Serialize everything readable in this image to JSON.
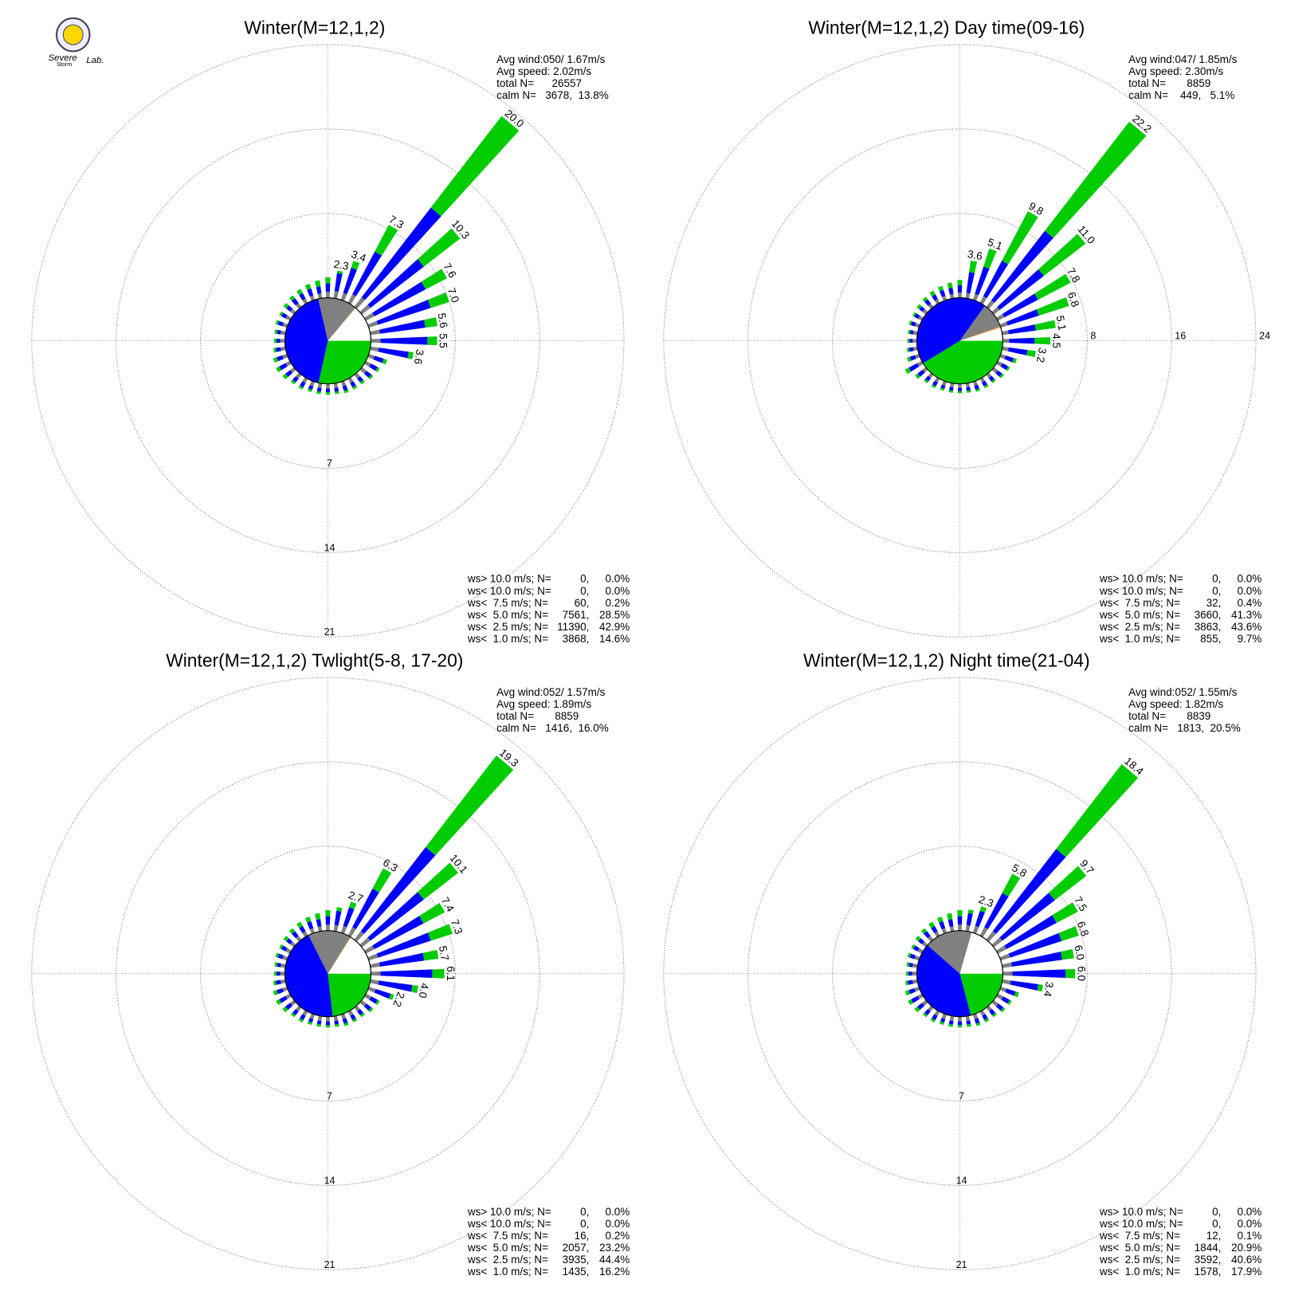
{
  "logo": [
    "Severe",
    "Storm",
    "Lab."
  ],
  "chart_data": [
    {
      "type": "windrose",
      "title": "Winter(M=12,1,2)",
      "info": [
        "Avg wind:050/ 1.67m/s",
        "Avg speed: 2.02m/s",
        "total N=      26557",
        "calm N=   3678,  13.8%"
      ],
      "directions": [
        10,
        20,
        30,
        40,
        50,
        60,
        70,
        80,
        90,
        100,
        110,
        120,
        130,
        140,
        150,
        160,
        170,
        180,
        190,
        200,
        210,
        220,
        230,
        240,
        250,
        260,
        270,
        280,
        290,
        300,
        310,
        320,
        330,
        340,
        350,
        360
      ],
      "rlim": [
        0,
        21
      ],
      "rticks": [
        7,
        14,
        21
      ],
      "grid": true,
      "bar_labels": [
        "2.3",
        "3.4",
        "7.3",
        "20.0",
        "10.3",
        "7.6",
        "7.0",
        "5.6",
        "5.5",
        "3.6",
        null,
        null,
        null,
        null,
        null,
        null,
        null,
        null,
        null,
        null,
        null,
        null,
        null,
        null,
        null,
        null,
        null,
        null,
        null,
        null,
        null,
        null,
        null,
        null,
        null,
        null
      ],
      "classes": [
        {
          "name": "ws> 10.0 m/s; N=",
          "color": "#9900cc",
          "n": "0,",
          "percent": 0,
          "percent_label": "0.0%"
        },
        {
          "name": "ws< 10.0 m/s; N=",
          "color": "#ff0000",
          "n": "0,",
          "percent": 0,
          "percent_label": "0.0%"
        },
        {
          "name": "ws<  7.5 m/s; N=",
          "color": "#ff9933",
          "n": "60,",
          "percent": 0.2,
          "percent_label": "0.2%"
        },
        {
          "name": "ws<  5.0 m/s; N=",
          "color": "#00cc00",
          "n": "7561,",
          "percent": 28.5,
          "percent_label": "28.5%",
          "values": [
            0.2,
            0.6,
            2.5,
            9.6,
            3.8,
            2.0,
            1.6,
            1.0,
            0.8,
            0.4,
            0.3,
            0.2,
            0.2,
            0.2,
            0.2,
            0.2,
            0.2,
            0.2,
            0.2,
            0.2,
            0.2,
            0.2,
            0.3,
            0.3,
            0.3,
            0.2,
            0.2,
            0.2,
            0.2,
            0.2,
            0.3,
            0.3,
            0.4,
            0.4,
            0.5,
            0.5
          ]
        },
        {
          "name": "ws<  2.5 m/s; N=",
          "color": "#0000ff",
          "n": "11390,",
          "percent": 42.9,
          "percent_label": "42.9%",
          "values": [
            1.5,
            2.2,
            4.0,
            9.4,
            5.6,
            4.8,
            4.6,
            3.8,
            3.9,
            2.5,
            0.8,
            0.6,
            0.5,
            0.4,
            0.4,
            0.4,
            0.3,
            0.3,
            0.3,
            0.3,
            0.4,
            0.4,
            0.5,
            0.6,
            0.5,
            0.4,
            0.3,
            0.3,
            0.4,
            0.4,
            0.4,
            0.5,
            0.5,
            0.6,
            0.6,
            0.7
          ]
        },
        {
          "name": "ws<  1.0 m/s; N=",
          "color": "#808080",
          "n": "3868,",
          "percent": 14.6,
          "percent_label": "14.6%",
          "values": [
            0.6,
            0.6,
            0.8,
            1.0,
            0.9,
            0.8,
            0.8,
            0.8,
            0.8,
            0.7,
            0.5,
            0.5,
            0.5,
            0.4,
            0.4,
            0.4,
            0.4,
            0.4,
            0.4,
            0.4,
            0.4,
            0.4,
            0.4,
            0.4,
            0.4,
            0.4,
            0.4,
            0.4,
            0.4,
            0.4,
            0.4,
            0.4,
            0.4,
            0.4,
            0.4,
            0.5
          ]
        }
      ]
    },
    {
      "type": "windrose",
      "title": "Winter(M=12,1,2) Day time(09-16)",
      "info": [
        "Avg wind:047/ 1.85m/s",
        "Avg speed: 2.30m/s",
        "total N=       8859",
        "calm N=    449,   5.1%"
      ],
      "directions": [
        10,
        20,
        30,
        40,
        50,
        60,
        70,
        80,
        90,
        100,
        110,
        120,
        130,
        140,
        150,
        160,
        170,
        180,
        190,
        200,
        210,
        220,
        230,
        240,
        250,
        260,
        270,
        280,
        290,
        300,
        310,
        320,
        330,
        340,
        350,
        360
      ],
      "rlim": [
        0,
        24
      ],
      "rticks": [
        8,
        16,
        24
      ],
      "grid": true,
      "bar_labels": [
        "3.6",
        "5.1",
        "9.8",
        "22.2",
        "11.0",
        "7.8",
        "6.8",
        "5.1",
        "4.5",
        "3.2",
        null,
        null,
        null,
        null,
        null,
        null,
        null,
        null,
        null,
        null,
        null,
        null,
        null,
        null,
        null,
        null,
        null,
        null,
        null,
        null,
        null,
        null,
        null,
        null,
        null,
        null
      ],
      "classes": [
        {
          "name": "ws> 10.0 m/s; N=",
          "color": "#9900cc",
          "n": "0,",
          "percent": 0,
          "percent_label": "0.0%"
        },
        {
          "name": "ws< 10.0 m/s; N=",
          "color": "#ff0000",
          "n": "0,",
          "percent": 0,
          "percent_label": "0.0%"
        },
        {
          "name": "ws<  7.5 m/s; N=",
          "color": "#ff9933",
          "n": "32,",
          "percent": 0.4,
          "percent_label": "0.4%"
        },
        {
          "name": "ws<  5.0 m/s; N=",
          "color": "#00cc00",
          "n": "3660,",
          "percent": 41.3,
          "percent_label": "41.3%",
          "values": [
            1.1,
            1.8,
            5.3,
            13.1,
            5.0,
            3.5,
            3.0,
            1.9,
            1.5,
            0.8,
            0.3,
            0.2,
            0.2,
            0.2,
            0.2,
            0.2,
            0.2,
            0.2,
            0.2,
            0.2,
            0.2,
            0.2,
            0.3,
            0.4,
            0.3,
            0.2,
            0.2,
            0.2,
            0.2,
            0.2,
            0.3,
            0.3,
            0.4,
            0.4,
            0.5,
            0.5
          ]
        },
        {
          "name": "ws<  2.5 m/s; N=",
          "color": "#0000ff",
          "n": "3863,",
          "percent": 43.6,
          "percent_label": "43.6%",
          "values": [
            2.0,
            2.7,
            3.8,
            8.3,
            5.3,
            3.6,
            3.1,
            2.6,
            2.4,
            1.8,
            0.8,
            0.6,
            0.5,
            0.4,
            0.4,
            0.4,
            0.3,
            0.3,
            0.3,
            0.3,
            0.4,
            0.4,
            0.6,
            0.9,
            0.5,
            0.4,
            0.3,
            0.3,
            0.4,
            0.4,
            0.4,
            0.5,
            0.5,
            0.6,
            0.6,
            0.7
          ]
        },
        {
          "name": "ws<  1.0 m/s; N=",
          "color": "#808080",
          "n": "855,",
          "percent": 9.7,
          "percent_label": "9.7%",
          "values": [
            0.5,
            0.6,
            0.7,
            0.8,
            0.7,
            0.7,
            0.7,
            0.6,
            0.6,
            0.6,
            0.5,
            0.5,
            0.5,
            0.4,
            0.4,
            0.4,
            0.4,
            0.4,
            0.4,
            0.4,
            0.4,
            0.4,
            0.4,
            0.5,
            0.4,
            0.4,
            0.4,
            0.4,
            0.4,
            0.4,
            0.4,
            0.4,
            0.4,
            0.4,
            0.4,
            0.5
          ]
        }
      ]
    },
    {
      "type": "windrose",
      "title": "Winter(M=12,1,2) Twlight(5-8, 17-20)",
      "info": [
        "Avg wind:052/ 1.57m/s",
        "Avg speed: 1.89m/s",
        "total N=       8859",
        "calm N=   1416,  16.0%"
      ],
      "directions": [
        10,
        20,
        30,
        40,
        50,
        60,
        70,
        80,
        90,
        100,
        110,
        120,
        130,
        140,
        150,
        160,
        170,
        180,
        190,
        200,
        210,
        220,
        230,
        240,
        250,
        260,
        270,
        280,
        290,
        300,
        310,
        320,
        330,
        340,
        350,
        360
      ],
      "rlim": [
        0,
        21
      ],
      "rticks": [
        7,
        14,
        21
      ],
      "grid": true,
      "bar_labels": [
        null,
        "2.7",
        "6.3",
        "19.3",
        "10.1",
        "7.4",
        "7.3",
        "5.7",
        "6.1",
        "4.0",
        "2.2",
        null,
        null,
        null,
        null,
        null,
        null,
        null,
        null,
        null,
        null,
        null,
        null,
        null,
        null,
        null,
        null,
        null,
        null,
        null,
        null,
        null,
        null,
        null,
        null,
        null
      ],
      "classes": [
        {
          "name": "ws> 10.0 m/s; N=",
          "color": "#9900cc",
          "n": "0,",
          "percent": 0,
          "percent_label": "0.0%"
        },
        {
          "name": "ws< 10.0 m/s; N=",
          "color": "#ff0000",
          "n": "0,",
          "percent": 0,
          "percent_label": "0.0%"
        },
        {
          "name": "ws<  7.5 m/s; N=",
          "color": "#ff9933",
          "n": "16,",
          "percent": 0.2,
          "percent_label": "0.2%"
        },
        {
          "name": "ws<  5.0 m/s; N=",
          "color": "#00cc00",
          "n": "2057,",
          "percent": 23.2,
          "percent_label": "23.2%",
          "values": [
            0.3,
            0.5,
            1.9,
            9.6,
            3.6,
            2.0,
            1.9,
            1.2,
            1.0,
            0.5,
            0.3,
            0.2,
            0.2,
            0.2,
            0.2,
            0.2,
            0.2,
            0.2,
            0.2,
            0.2,
            0.2,
            0.2,
            0.3,
            0.3,
            0.3,
            0.2,
            0.2,
            0.2,
            0.2,
            0.2,
            0.3,
            0.3,
            0.4,
            0.4,
            0.5,
            0.5
          ]
        },
        {
          "name": "ws<  2.5 m/s; N=",
          "color": "#0000ff",
          "n": "3935,",
          "percent": 44.4,
          "percent_label": "44.4%",
          "values": [
            1.2,
            1.6,
            3.6,
            8.8,
            5.6,
            4.6,
            4.6,
            3.7,
            4.3,
            2.8,
            1.3,
            0.6,
            0.5,
            0.4,
            0.4,
            0.4,
            0.3,
            0.3,
            0.3,
            0.3,
            0.4,
            0.4,
            0.5,
            0.6,
            0.5,
            0.4,
            0.3,
            0.3,
            0.4,
            0.4,
            0.4,
            0.5,
            0.5,
            0.6,
            0.6,
            0.7
          ]
        },
        {
          "name": "ws<  1.0 m/s; N=",
          "color": "#808080",
          "n": "1435,",
          "percent": 16.2,
          "percent_label": "16.2%",
          "values": [
            0.5,
            0.6,
            0.8,
            0.9,
            0.9,
            0.8,
            0.8,
            0.8,
            0.8,
            0.7,
            0.6,
            0.5,
            0.5,
            0.4,
            0.4,
            0.4,
            0.4,
            0.4,
            0.4,
            0.4,
            0.4,
            0.4,
            0.4,
            0.4,
            0.4,
            0.4,
            0.4,
            0.4,
            0.4,
            0.4,
            0.4,
            0.4,
            0.4,
            0.4,
            0.4,
            0.5
          ]
        }
      ]
    },
    {
      "type": "windrose",
      "title": "Winter(M=12,1,2) Night time(21-04)",
      "info": [
        "Avg wind:052/ 1.55m/s",
        "Avg speed: 1.82m/s",
        "total N=       8839",
        "calm N=   1813,  20.5%"
      ],
      "directions": [
        10,
        20,
        30,
        40,
        50,
        60,
        70,
        80,
        90,
        100,
        110,
        120,
        130,
        140,
        150,
        160,
        170,
        180,
        190,
        200,
        210,
        220,
        230,
        240,
        250,
        260,
        270,
        280,
        290,
        300,
        310,
        320,
        330,
        340,
        350,
        360
      ],
      "rlim": [
        0,
        21
      ],
      "rticks": [
        7,
        14,
        21
      ],
      "grid": true,
      "bar_labels": [
        null,
        "2.3",
        "5.8",
        "18.4",
        "9.7",
        "7.5",
        "6.8",
        "6.0",
        "6.0",
        "3.4",
        null,
        null,
        null,
        null,
        null,
        null,
        null,
        null,
        null,
        null,
        null,
        null,
        null,
        null,
        null,
        null,
        null,
        null,
        null,
        null,
        null,
        null,
        null,
        null,
        null,
        null
      ],
      "classes": [
        {
          "name": "ws> 10.0 m/s; N=",
          "color": "#9900cc",
          "n": "0,",
          "percent": 0,
          "percent_label": "0.0%"
        },
        {
          "name": "ws< 10.0 m/s; N=",
          "color": "#ff0000",
          "n": "0,",
          "percent": 0,
          "percent_label": "0.0%"
        },
        {
          "name": "ws<  7.5 m/s; N=",
          "color": "#ff9933",
          "n": "12,",
          "percent": 0.1,
          "percent_label": "0.1%"
        },
        {
          "name": "ws<  5.0 m/s; N=",
          "color": "#00cc00",
          "n": "1844,",
          "percent": 20.9,
          "percent_label": "20.9%",
          "values": [
            0.3,
            0.4,
            1.8,
            8.9,
            3.3,
            2.0,
            1.5,
            1.0,
            0.8,
            0.4,
            0.3,
            0.2,
            0.2,
            0.2,
            0.2,
            0.2,
            0.2,
            0.2,
            0.2,
            0.2,
            0.2,
            0.2,
            0.3,
            0.3,
            0.3,
            0.2,
            0.2,
            0.2,
            0.2,
            0.2,
            0.3,
            0.3,
            0.4,
            0.4,
            0.5,
            0.5
          ]
        },
        {
          "name": "ws<  2.5 m/s; N=",
          "color": "#0000ff",
          "n": "3592,",
          "percent": 40.6,
          "percent_label": "40.6%",
          "values": [
            1.0,
            1.3,
            3.2,
            8.6,
            5.5,
            4.7,
            4.5,
            4.2,
            4.4,
            2.3,
            0.8,
            0.6,
            0.5,
            0.4,
            0.4,
            0.4,
            0.3,
            0.3,
            0.3,
            0.3,
            0.4,
            0.4,
            0.5,
            0.6,
            0.5,
            0.4,
            0.3,
            0.3,
            0.4,
            0.4,
            0.4,
            0.5,
            0.5,
            0.6,
            0.6,
            0.7
          ]
        },
        {
          "name": "ws<  1.0 m/s; N=",
          "color": "#808080",
          "n": "1578,",
          "percent": 17.9,
          "percent_label": "17.9%",
          "values": [
            0.5,
            0.6,
            0.8,
            0.9,
            0.9,
            0.8,
            0.8,
            0.8,
            0.8,
            0.7,
            0.5,
            0.5,
            0.5,
            0.4,
            0.4,
            0.4,
            0.4,
            0.4,
            0.4,
            0.4,
            0.4,
            0.4,
            0.4,
            0.4,
            0.4,
            0.4,
            0.4,
            0.4,
            0.4,
            0.4,
            0.4,
            0.4,
            0.4,
            0.4,
            0.4,
            0.5
          ]
        }
      ]
    }
  ]
}
